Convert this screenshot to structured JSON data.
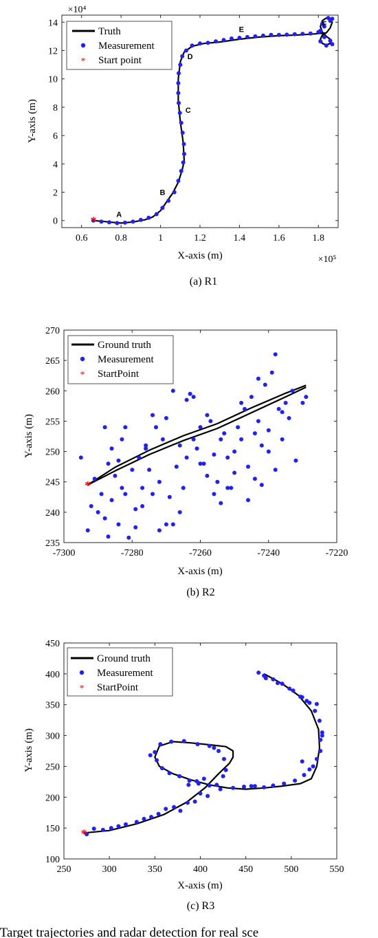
{
  "figure_caption": ": Target trajectories and radar detection for real sce",
  "colors": {
    "truth": "#000000",
    "measurement": "#1f1fff",
    "start": "#ff0000",
    "axis": "#262626"
  },
  "chart_data": [
    {
      "type": "scatter",
      "caption": "(a) R1",
      "xlabel": "X-axis (m)",
      "ylabel": "Y-axis (m)",
      "x_exponent": "×10⁵",
      "y_exponent": "×10⁴",
      "xlim": [
        0.5,
        1.9
      ],
      "ylim": [
        -0.5,
        14.5
      ],
      "xticks": [
        0.6,
        0.8,
        1,
        1.2,
        1.4,
        1.6,
        1.8
      ],
      "xtick_labels": [
        "0.6",
        "0.8",
        "1",
        "1.2",
        "1.4",
        "1.6",
        "1.8"
      ],
      "yticks": [
        0,
        2,
        4,
        6,
        8,
        10,
        12,
        14
      ],
      "ytick_labels": [
        "0",
        "2",
        "4",
        "6",
        "8",
        "10",
        "12",
        "14"
      ],
      "legend": [
        "Truth",
        "Measurement",
        "Start point"
      ],
      "legend_position": "top-left",
      "annotations": [
        {
          "text": "A",
          "x": 0.79,
          "y": 0.25
        },
        {
          "text": "B",
          "x": 1.01,
          "y": 1.8
        },
        {
          "text": "C",
          "x": 1.14,
          "y": 7.6
        },
        {
          "text": "D",
          "x": 1.15,
          "y": 11.4
        },
        {
          "text": "E",
          "x": 1.41,
          "y": 13.3
        },
        {
          "text": "F",
          "x": 1.83,
          "y": 13.7
        }
      ],
      "series": [
        {
          "role": "truth",
          "x": [
            0.66,
            0.7,
            0.75,
            0.8,
            0.86,
            0.92,
            0.96,
            1.0,
            1.03,
            1.06,
            1.09,
            1.11,
            1.12,
            1.115,
            1.1,
            1.09,
            1.09,
            1.1,
            1.12,
            1.16,
            1.22,
            1.3,
            1.4,
            1.5,
            1.6,
            1.7,
            1.76,
            1.8,
            1.84
          ],
          "y": [
            0.0,
            -0.05,
            -0.12,
            -0.18,
            -0.1,
            0.05,
            0.25,
            0.7,
            1.3,
            1.9,
            2.7,
            3.6,
            4.2,
            5.5,
            7.0,
            8.5,
            10.0,
            11.2,
            11.9,
            12.3,
            12.5,
            12.6,
            12.8,
            12.95,
            13.05,
            13.1,
            13.15,
            13.2,
            13.25
          ]
        },
        {
          "role": "truth_loop",
          "x": [
            1.84,
            1.86,
            1.87,
            1.86,
            1.84,
            1.82,
            1.81,
            1.82,
            1.84,
            1.86,
            1.86,
            1.84,
            1.82,
            1.81,
            1.82,
            1.84
          ],
          "y": [
            13.25,
            13.6,
            14.0,
            14.25,
            14.3,
            14.1,
            13.7,
            13.3,
            13.0,
            12.8,
            12.5,
            12.4,
            12.5,
            12.8,
            13.1,
            13.25
          ]
        },
        {
          "role": "measurement",
          "x": [
            0.66,
            0.7,
            0.74,
            0.78,
            0.82,
            0.86,
            0.9,
            0.94,
            0.98,
            1.01,
            1.04,
            1.07,
            1.09,
            1.105,
            1.115,
            1.12,
            1.118,
            1.112,
            1.105,
            1.098,
            1.092,
            1.09,
            1.09,
            1.092,
            1.1,
            1.11,
            1.13,
            1.16,
            1.2,
            1.24,
            1.28,
            1.32,
            1.36,
            1.4,
            1.44,
            1.48,
            1.52,
            1.56,
            1.6,
            1.64,
            1.68,
            1.72,
            1.76,
            1.8,
            1.83,
            1.86,
            1.87,
            1.85,
            1.82,
            1.81,
            1.83,
            1.86,
            1.87,
            1.84,
            1.81
          ],
          "y": [
            0.0,
            -0.08,
            -0.12,
            -0.18,
            -0.15,
            -0.08,
            0.05,
            0.2,
            0.45,
            0.9,
            1.4,
            2.0,
            2.8,
            3.5,
            4.1,
            4.7,
            5.4,
            6.2,
            6.9,
            7.6,
            8.3,
            9.0,
            9.7,
            10.4,
            11.0,
            11.6,
            12.0,
            12.35,
            12.5,
            12.55,
            12.65,
            12.75,
            12.85,
            12.9,
            12.95,
            13.0,
            13.05,
            13.1,
            13.1,
            13.12,
            13.15,
            13.18,
            13.2,
            13.3,
            13.7,
            14.1,
            14.25,
            14.3,
            13.9,
            13.4,
            12.95,
            12.7,
            12.45,
            12.35,
            12.65
          ]
        },
        {
          "role": "start",
          "x": [
            0.66
          ],
          "y": [
            0.0
          ]
        }
      ]
    },
    {
      "type": "scatter",
      "caption": "(b) R2",
      "xlabel": "X-axis (m)",
      "ylabel": "Y-axis (m)",
      "xlim": [
        -7300,
        -7220
      ],
      "ylim": [
        235,
        270
      ],
      "xticks": [
        -7300,
        -7280,
        -7260,
        -7240,
        -7220
      ],
      "xtick_labels": [
        "-7300",
        "-7280",
        "-7260",
        "-7240",
        "-7220"
      ],
      "yticks": [
        235,
        240,
        245,
        250,
        255,
        260,
        265,
        270
      ],
      "ytick_labels": [
        "235",
        "240",
        "245",
        "250",
        "255",
        "260",
        "265",
        "270"
      ],
      "legend": [
        "Ground truth",
        "Measurement",
        "StartPoint"
      ],
      "legend_position": "top-left",
      "series": [
        {
          "role": "truth",
          "x": [
            -7293,
            -7285,
            -7275,
            -7265,
            -7255,
            -7245,
            -7235,
            -7229
          ],
          "y": [
            244.5,
            246.8,
            249.5,
            251.8,
            253.8,
            256.4,
            259.0,
            260.6
          ]
        },
        {
          "role": "truth",
          "x": [
            -7293,
            -7285,
            -7275,
            -7265,
            -7255,
            -7245,
            -7235,
            -7229
          ],
          "y": [
            244.5,
            247.4,
            250.2,
            252.6,
            254.6,
            257.2,
            259.6,
            260.9
          ]
        },
        {
          "role": "measurement",
          "x": [
            -7295,
            -7293,
            -7292,
            -7291,
            -7290,
            -7289,
            -7288,
            -7287,
            -7287,
            -7286,
            -7285,
            -7284,
            -7283,
            -7283,
            -7282,
            -7281,
            -7280,
            -7279,
            -7278,
            -7277,
            -7276,
            -7275,
            -7274,
            -7273,
            -7272,
            -7271,
            -7270,
            -7269,
            -7268,
            -7267,
            -7266,
            -7265,
            -7264,
            -7263,
            -7262,
            -7261,
            -7260,
            -7259,
            -7258,
            -7257,
            -7256,
            -7255,
            -7254,
            -7253,
            -7252,
            -7251,
            -7250,
            -7249,
            -7248,
            -7247,
            -7246,
            -7245,
            -7244,
            -7243,
            -7242,
            -7241,
            -7240,
            -7239,
            -7238,
            -7237,
            -7236,
            -7235,
            -7234,
            -7233,
            -7232,
            -7230,
            -7229,
            -7288,
            -7286,
            -7284,
            -7279,
            -7276,
            -7274,
            -7272,
            -7270,
            -7268,
            -7264,
            -7262,
            -7258,
            -7256,
            -7254,
            -7252,
            -7250,
            -7246,
            -7244,
            -7242,
            -7240,
            -7238,
            -7236,
            -7282,
            -7277,
            -7266,
            -7260,
            -7248,
            -7243
          ],
          "y": [
            249.0,
            237.0,
            241.0,
            245.5,
            240.0,
            243.0,
            254.0,
            236.0,
            248.0,
            250.5,
            246.0,
            238.0,
            244.0,
            252.0,
            243.0,
            235.8,
            247.0,
            240.5,
            249.0,
            244.0,
            250.5,
            247.0,
            243.0,
            254.0,
            237.0,
            252.0,
            255.5,
            242.5,
            238.0,
            247.5,
            251.0,
            244.0,
            258.5,
            259.5,
            252.0,
            250.5,
            254.0,
            248.0,
            246.0,
            255.0,
            243.0,
            245.0,
            252.0,
            253.0,
            249.0,
            244.0,
            250.0,
            254.0,
            252.0,
            257.0,
            247.5,
            259.0,
            253.0,
            255.0,
            244.5,
            261.0,
            250.0,
            263.0,
            266.0,
            257.0,
            252.0,
            258.0,
            255.5,
            260.0,
            248.5,
            258.0,
            259.0,
            239.0,
            242.0,
            248.5,
            237.5,
            251.0,
            256.0,
            245.0,
            238.0,
            260.0,
            249.0,
            259.0,
            256.0,
            249.5,
            241.5,
            244.0,
            246.5,
            242.0,
            245.5,
            251.0,
            253.5,
            247.0,
            256.5,
            254.0,
            241.0,
            240.0,
            248.0,
            258.0,
            262.0
          ]
        },
        {
          "role": "start",
          "x": [
            -7293
          ],
          "y": [
            244.5
          ]
        }
      ]
    },
    {
      "type": "scatter",
      "caption": "(c) R3",
      "xlabel": "X-axis (m)",
      "ylabel": "Y-axis (m)",
      "xlim": [
        250,
        550
      ],
      "ylim": [
        100,
        450
      ],
      "xticks": [
        250,
        300,
        350,
        400,
        450,
        500,
        550
      ],
      "xtick_labels": [
        "250",
        "300",
        "350",
        "400",
        "450",
        "500",
        "550"
      ],
      "yticks": [
        100,
        150,
        200,
        250,
        300,
        350,
        400,
        450
      ],
      "ytick_labels": [
        "100",
        "150",
        "200",
        "250",
        "300",
        "350",
        "400",
        "450"
      ],
      "legend": [
        "Ground truth",
        "Measurement",
        "StartPoint"
      ],
      "legend_position": "top-left",
      "series": [
        {
          "role": "truth",
          "x": [
            272,
            300,
            330,
            360,
            385,
            405,
            420,
            432,
            436,
            436,
            428,
            410,
            390,
            370,
            355,
            350,
            355,
            370,
            390,
            410,
            430,
            450,
            470,
            490,
            510,
            522,
            528,
            531,
            530,
            522,
            508,
            490,
            470
          ],
          "y": [
            142,
            146,
            157,
            172,
            192,
            215,
            238,
            255,
            265,
            275,
            282,
            285,
            288,
            290,
            283,
            265,
            250,
            238,
            228,
            220,
            215,
            213,
            215,
            218,
            222,
            230,
            250,
            280,
            310,
            340,
            365,
            384,
            400
          ]
        },
        {
          "role": "measurement",
          "x": [
            275,
            283,
            293,
            302,
            310,
            318,
            330,
            338,
            346,
            354,
            362,
            371,
            378,
            386,
            394,
            400,
            408,
            418,
            425,
            428,
            426,
            420,
            410,
            397,
            382,
            368,
            356,
            350,
            352,
            358,
            366,
            377,
            388,
            398,
            410,
            422,
            436,
            448,
            460,
            470,
            480,
            492,
            504,
            514,
            520,
            524,
            528,
            532,
            534,
            531,
            526,
            520,
            512,
            502,
            490,
            480,
            470,
            464,
            472,
            485,
            498,
            510,
            517,
            528,
            534,
            532,
            415,
            345,
            404,
            396,
            387,
            512,
            456
          ],
          "y": [
            140,
            149,
            147,
            150,
            153,
            156,
            160,
            165,
            168,
            173,
            181,
            184,
            178,
            191,
            193,
            206,
            202,
            220,
            234,
            244,
            262,
            275,
            283,
            286,
            291,
            290,
            286,
            273,
            260,
            247,
            239,
            234,
            227,
            222,
            219,
            213,
            215,
            217,
            218,
            216,
            219,
            222,
            227,
            236,
            245,
            250,
            262,
            275,
            300,
            324,
            340,
            353,
            362,
            373,
            384,
            391,
            397,
            402,
            393,
            385,
            376,
            363,
            356,
            351,
            305,
            293,
            280,
            268,
            230,
            226,
            220,
            258,
            218
          ]
        },
        {
          "role": "start",
          "x": [
            272
          ],
          "y": [
            142
          ]
        }
      ]
    }
  ]
}
